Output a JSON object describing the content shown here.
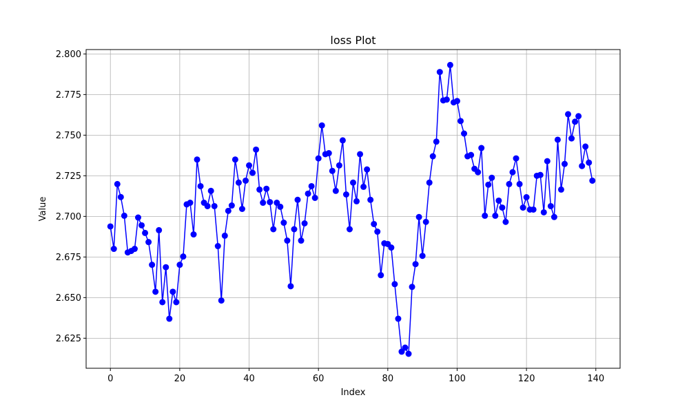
{
  "chart_data": {
    "type": "line",
    "title": "loss Plot",
    "xlabel": "Index",
    "ylabel": "Value",
    "xlim": [
      -7,
      147
    ],
    "ylim": [
      2.6065,
      2.8027
    ],
    "xticks": [
      0,
      20,
      40,
      60,
      80,
      100,
      120,
      140
    ],
    "yticks": [
      2.625,
      2.65,
      2.675,
      2.7,
      2.725,
      2.75,
      2.775,
      2.8
    ],
    "xtick_labels": [
      "0",
      "20",
      "40",
      "60",
      "80",
      "100",
      "120",
      "140"
    ],
    "ytick_labels": [
      "2.625",
      "2.650",
      "2.675",
      "2.700",
      "2.725",
      "2.750",
      "2.775",
      "2.800"
    ],
    "grid": true,
    "series": [
      {
        "color": "#0000ff",
        "marker": "circle",
        "x_start": 0,
        "values": [
          2.6938,
          2.68,
          2.7199,
          2.7119,
          2.7004,
          2.6778,
          2.6787,
          2.68,
          2.6993,
          2.6945,
          2.6898,
          2.6842,
          2.6702,
          2.6536,
          2.6915,
          2.6472,
          2.6687,
          2.637,
          2.6536,
          2.6472,
          2.6702,
          2.6753,
          2.7074,
          2.7084,
          2.6889,
          2.735,
          2.7186,
          2.7084,
          2.7063,
          2.7157,
          2.7063,
          2.6817,
          2.6482,
          2.6881,
          2.7034,
          2.7067,
          2.735,
          2.7208,
          2.7046,
          2.722,
          2.7314,
          2.7268,
          2.7411,
          2.7165,
          2.7084,
          2.717,
          2.7088,
          2.6921,
          2.7084,
          2.7059,
          2.6961,
          2.6851,
          2.657,
          2.6921,
          2.7102,
          2.6851,
          2.6957,
          2.714,
          2.7186,
          2.7114,
          2.7357,
          2.756,
          2.7383,
          2.7389,
          2.728,
          2.7157,
          2.7314,
          2.7468,
          2.7135,
          2.6921,
          2.7208,
          2.7093,
          2.7383,
          2.7182,
          2.7289,
          2.7102,
          2.6953,
          2.6906,
          2.6638,
          2.6834,
          2.683,
          2.6808,
          2.6583,
          2.637,
          2.6167,
          2.6192,
          2.6154,
          2.6566,
          2.6706,
          2.6996,
          2.6757,
          2.6966,
          2.7208,
          2.737,
          2.746,
          2.7889,
          2.7714,
          2.7719,
          2.7932,
          2.7702,
          2.771,
          2.7587,
          2.751,
          2.737,
          2.7378,
          2.7293,
          2.7272,
          2.7421,
          2.7004,
          2.7195,
          2.7238,
          2.7004,
          2.7097,
          2.7054,
          2.6966,
          2.7199,
          2.7272,
          2.7357,
          2.7199,
          2.7054,
          2.7118,
          2.7042,
          2.7042,
          2.725,
          2.7255,
          2.7025,
          2.734,
          2.7063,
          2.6996,
          2.7472,
          2.7165,
          2.7323,
          2.7629,
          2.748,
          2.7583,
          2.7617,
          2.731,
          2.743,
          2.7331,
          2.722
        ]
      }
    ]
  }
}
